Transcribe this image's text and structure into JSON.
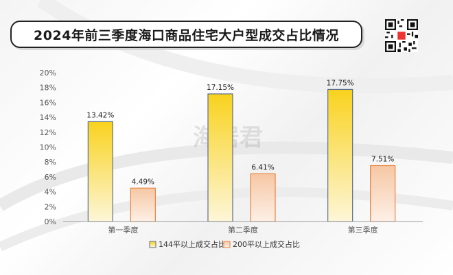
{
  "title": "2024年前三季度海口商品住宅大户型成交占比情况",
  "watermark": {
    "main": "海居君"
  },
  "colors": {
    "series1_top": "#f9d21e",
    "series1_bottom": "#fdf6d8",
    "series1_stroke": "#5b6f8e",
    "series2_top": "#f6c7a4",
    "series2_bottom": "#fdf0e7",
    "series2_stroke": "#e8833a",
    "axis_text": "#555555"
  },
  "chart_data": {
    "type": "bar",
    "categories": [
      "第一季度",
      "第二季度",
      "第三季度"
    ],
    "series": [
      {
        "name": "144平以上成交占比",
        "values": [
          13.42,
          17.15,
          17.75
        ],
        "labels": [
          "13.42%",
          "17.15%",
          "17.75%"
        ]
      },
      {
        "name": "200平以上成交占比",
        "values": [
          4.49,
          6.41,
          7.51
        ],
        "labels": [
          "4.49%",
          "6.41%",
          "7.51%"
        ]
      }
    ],
    "ylim": [
      0,
      20
    ],
    "yticks": [
      "0%",
      "2%",
      "4%",
      "6%",
      "8%",
      "10%",
      "12%",
      "14%",
      "16%",
      "18%",
      "20%"
    ],
    "legend": "bottom",
    "grid": false
  }
}
